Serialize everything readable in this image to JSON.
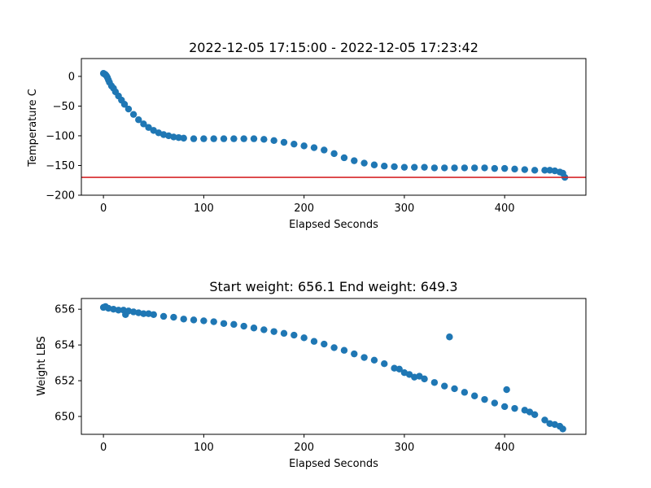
{
  "chart_data": [
    {
      "type": "scatter",
      "title": "2022-12-05 17:15:00 - 2022-12-05 17:23:42",
      "xlabel": "Elapsed Seconds",
      "ylabel": "Temperature C",
      "xlim": [
        -22,
        481
      ],
      "ylim": [
        -200,
        30
      ],
      "xticks": [
        0,
        100,
        200,
        300,
        400
      ],
      "yticks": [
        0,
        -50,
        -100,
        -150,
        -200
      ],
      "grid": false,
      "marker_color": "#1f77b4",
      "reference_line": {
        "y": -170,
        "color": "#d62728"
      },
      "series": [
        {
          "x": [
            0,
            1,
            2,
            3,
            4,
            5,
            6,
            8,
            10,
            12,
            15,
            18,
            21,
            25,
            30,
            35,
            40,
            45,
            50,
            55,
            60,
            65,
            70,
            75,
            80,
            90,
            100,
            110,
            120,
            130,
            140,
            150,
            160,
            170,
            180,
            190,
            200,
            210,
            220,
            230,
            240,
            250,
            260,
            270,
            280,
            290,
            300,
            310,
            320,
            330,
            340,
            350,
            360,
            370,
            380,
            390,
            400,
            410,
            420,
            430,
            440,
            445,
            450,
            455,
            458,
            460
          ],
          "y": [
            5,
            4,
            3,
            1,
            -2,
            -6,
            -10,
            -16,
            -20,
            -26,
            -33,
            -40,
            -47,
            -55,
            -64,
            -73,
            -80,
            -86,
            -91,
            -95,
            -98,
            -100,
            -102,
            -103,
            -104,
            -105,
            -105,
            -105,
            -105,
            -105,
            -105,
            -105,
            -106,
            -108,
            -111,
            -114,
            -117,
            -120,
            -124,
            -130,
            -137,
            -142,
            -146,
            -149,
            -151,
            -152,
            -153,
            -153,
            -153,
            -154,
            -154,
            -154,
            -154,
            -154,
            -154,
            -155,
            -155,
            -156,
            -157,
            -158,
            -158,
            -158,
            -159,
            -161,
            -163,
            -170
          ]
        }
      ]
    },
    {
      "type": "scatter",
      "title": "Start weight: 656.1 End weight: 649.3",
      "xlabel": "Elapsed Seconds",
      "ylabel": "Weight LBS",
      "xlim": [
        -22,
        481
      ],
      "ylim": [
        649.0,
        656.6
      ],
      "xticks": [
        0,
        100,
        200,
        300,
        400
      ],
      "yticks": [
        656,
        654,
        652,
        650
      ],
      "grid": false,
      "marker_color": "#1f77b4",
      "series": [
        {
          "x": [
            0,
            2,
            5,
            10,
            15,
            20,
            22,
            25,
            30,
            35,
            40,
            45,
            50,
            60,
            70,
            80,
            90,
            100,
            110,
            120,
            130,
            140,
            150,
            160,
            170,
            180,
            190,
            200,
            210,
            220,
            230,
            240,
            250,
            260,
            270,
            280,
            290,
            295,
            300,
            305,
            310,
            315,
            320,
            330,
            340,
            345,
            350,
            360,
            370,
            380,
            390,
            400,
            402,
            410,
            420,
            425,
            430,
            440,
            445,
            450,
            455,
            458
          ],
          "y": [
            656.1,
            656.15,
            656.05,
            656.0,
            655.95,
            655.95,
            655.7,
            655.9,
            655.85,
            655.8,
            655.75,
            655.75,
            655.7,
            655.6,
            655.55,
            655.45,
            655.4,
            655.35,
            655.3,
            655.2,
            655.15,
            655.05,
            654.95,
            654.85,
            654.75,
            654.65,
            654.55,
            654.4,
            654.2,
            654.05,
            653.85,
            653.7,
            653.5,
            653.3,
            653.15,
            652.95,
            652.7,
            652.65,
            652.45,
            652.35,
            652.2,
            652.25,
            652.1,
            651.9,
            651.7,
            654.45,
            651.55,
            651.35,
            651.15,
            650.95,
            650.75,
            650.55,
            651.5,
            650.45,
            650.35,
            650.25,
            650.1,
            649.8,
            649.6,
            649.55,
            649.45,
            649.3
          ]
        }
      ]
    }
  ]
}
